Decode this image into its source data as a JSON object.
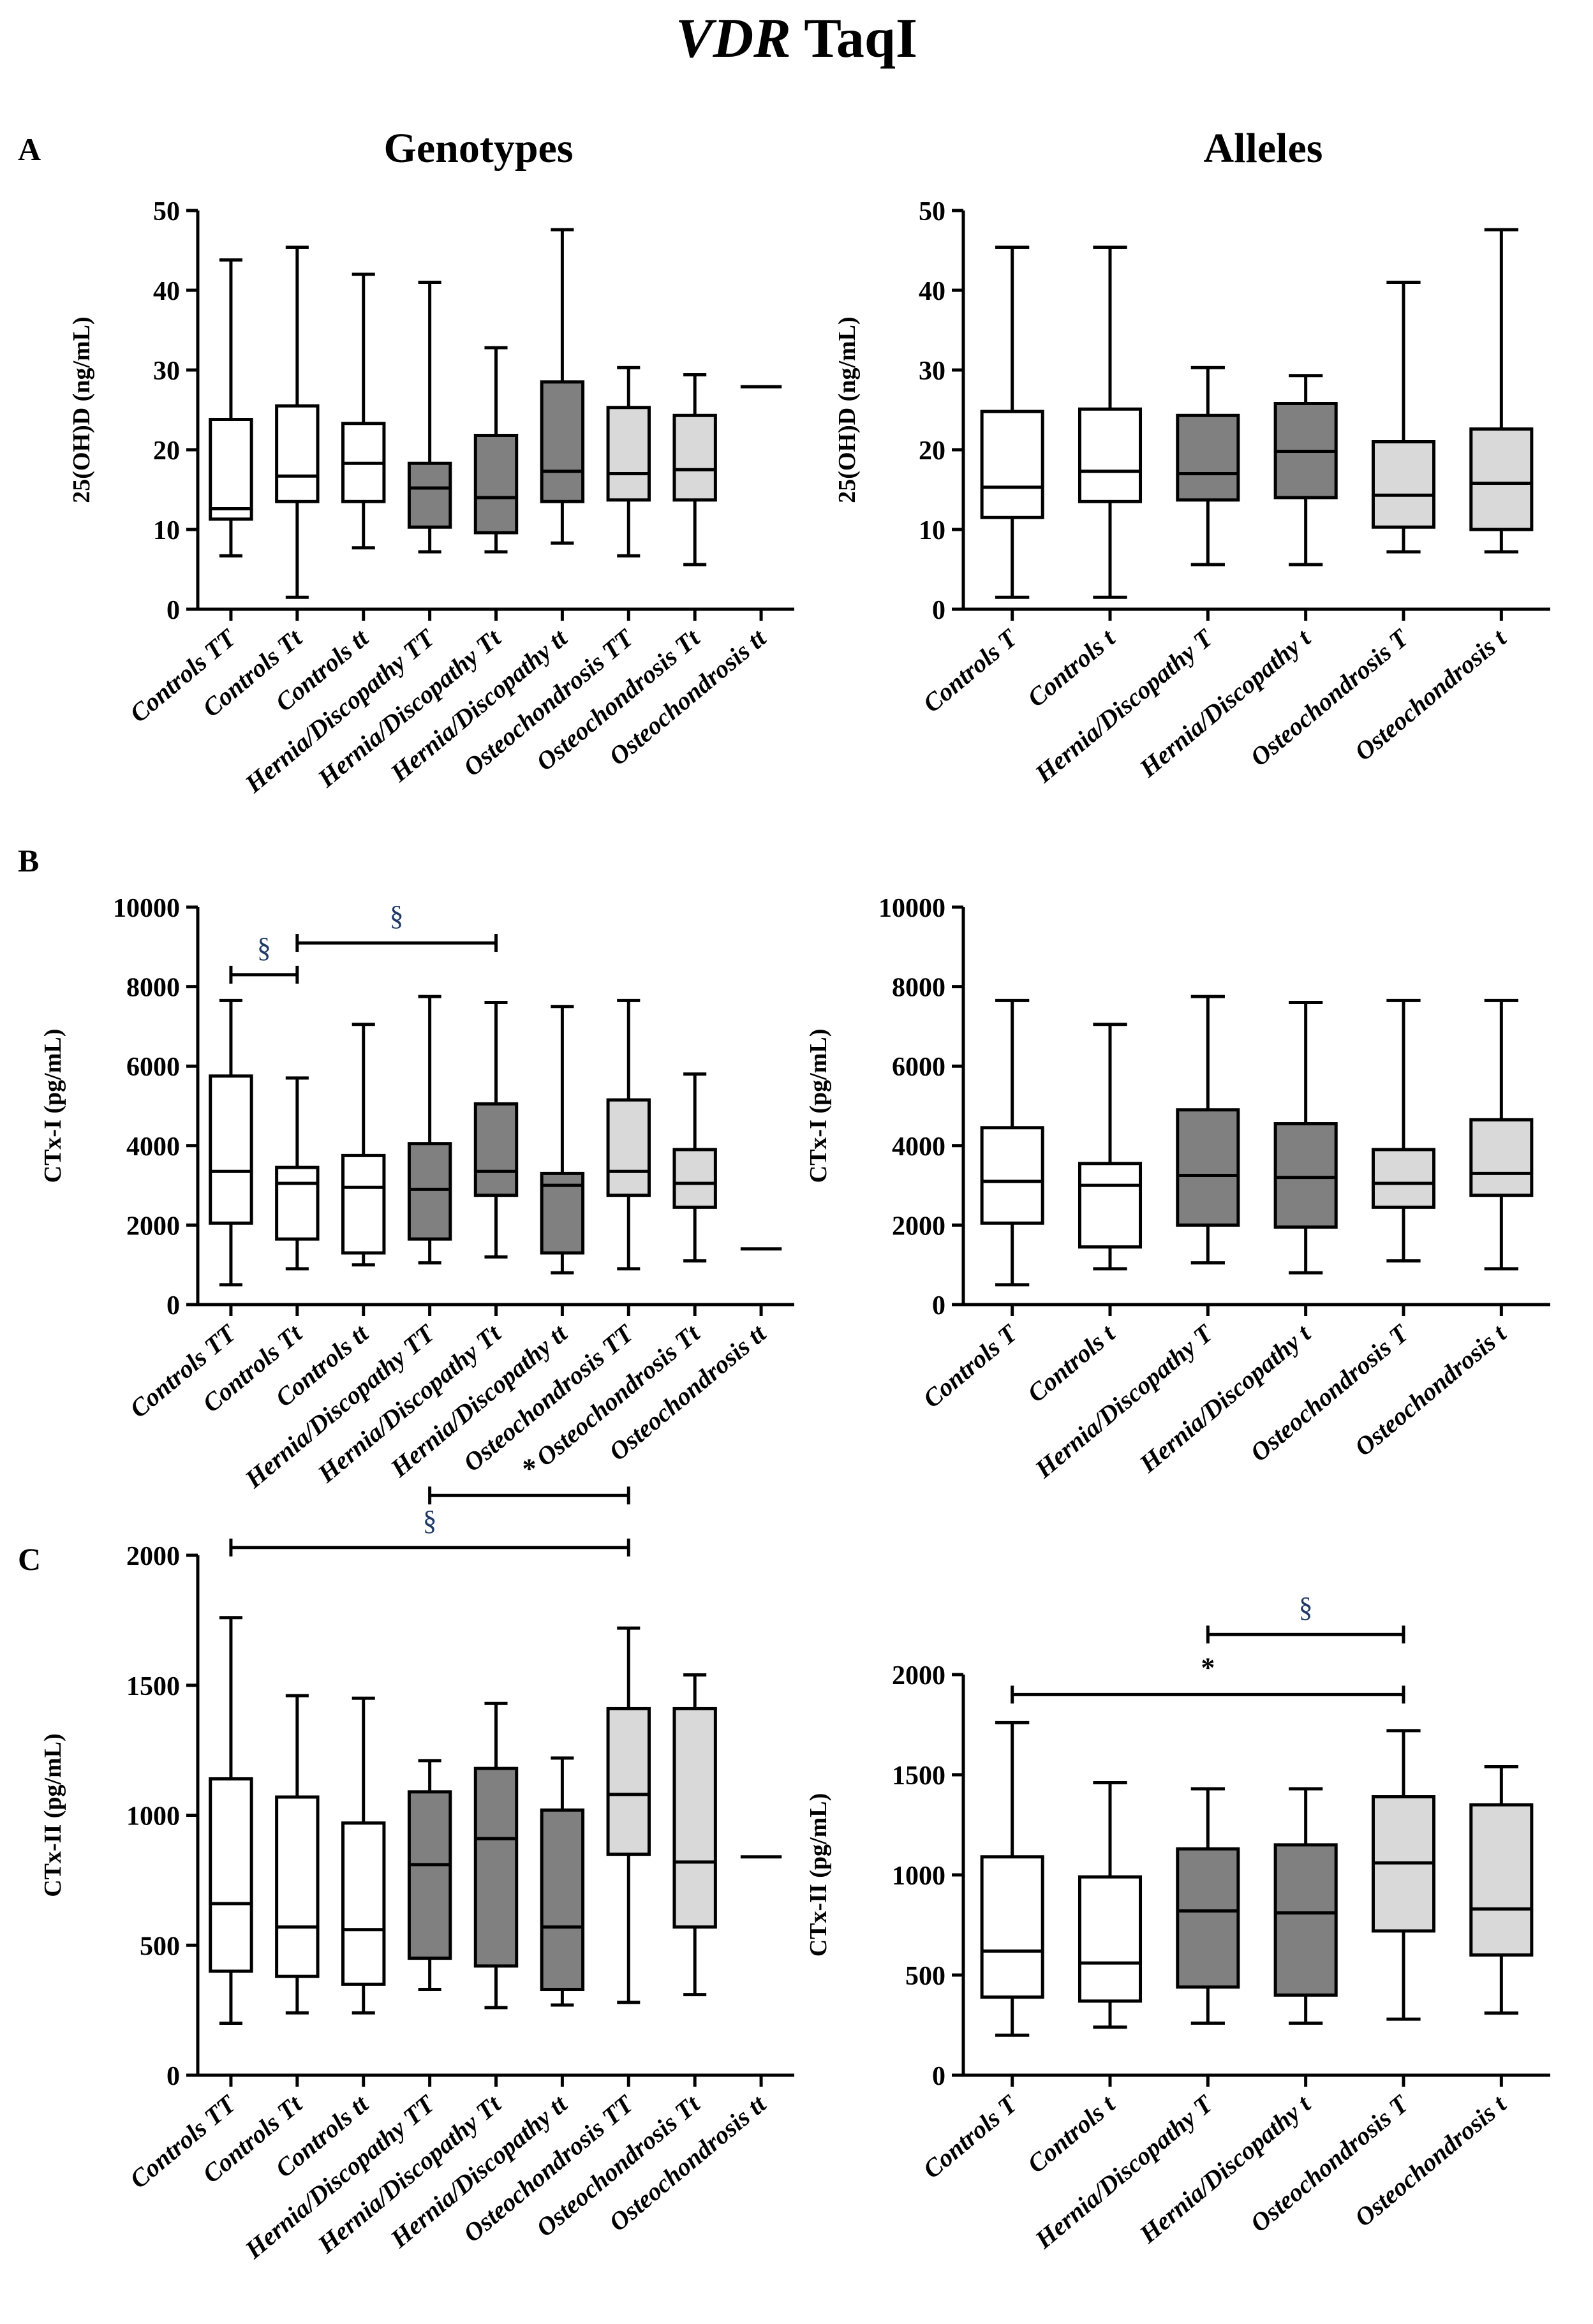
{
  "title": {
    "gene": "VDR",
    "polymorphism": "TaqI"
  },
  "panel_labels": [
    "A",
    "B",
    "C"
  ],
  "column_titles": {
    "genotypes": "Genotypes",
    "alleles": "Alleles"
  },
  "colors": {
    "controls": "#ffffff",
    "hernia": "#808080",
    "osteochondrosis": "#d9d9d9",
    "stroke": "#000000",
    "sig_text": "#1f3864"
  },
  "chart_data": [
    {
      "id": "A-genotypes",
      "type": "box",
      "ylabel": "25(OH)D (ng/mL)",
      "ylim": [
        0,
        50
      ],
      "yticks": [
        0,
        10,
        20,
        30,
        40,
        50
      ],
      "ytick_labels": [
        "0",
        "10",
        "20",
        "30",
        "40",
        "50"
      ],
      "categories": [
        "Controls TT",
        "Controls Tt",
        "Controls tt",
        "Hernia/Discopathy TT",
        "Hernia/Discopathy Tt",
        "Hernia/Discopathy tt",
        "Osteochondrosis TT",
        "Osteochondrosis Tt",
        "Osteochondrosis tt"
      ],
      "groups": [
        "controls",
        "controls",
        "controls",
        "hernia",
        "hernia",
        "hernia",
        "osteochondrosis",
        "osteochondrosis",
        "osteochondrosis"
      ],
      "boxes": [
        [
          6.7,
          11.3,
          12.6,
          23.8,
          43.8
        ],
        [
          1.5,
          13.5,
          16.7,
          25.5,
          45.4
        ],
        [
          7.7,
          13.5,
          18.3,
          23.3,
          42.0
        ],
        [
          7.2,
          10.3,
          15.2,
          18.3,
          41.0
        ],
        [
          7.2,
          9.6,
          14.0,
          21.8,
          32.8
        ],
        [
          8.3,
          13.5,
          17.3,
          28.5,
          47.6
        ],
        [
          6.7,
          13.7,
          17.0,
          25.3,
          30.3
        ],
        [
          5.6,
          13.7,
          17.5,
          24.3,
          29.4
        ],
        [
          27.9,
          27.9,
          27.9,
          27.9,
          27.9
        ]
      ],
      "significance": []
    },
    {
      "id": "A-alleles",
      "type": "box",
      "ylabel": "25(OH)D (ng/mL)",
      "ylim": [
        0,
        50
      ],
      "yticks": [
        0,
        10,
        20,
        30,
        40,
        50
      ],
      "ytick_labels": [
        "0",
        "10",
        "20",
        "30",
        "40",
        "50"
      ],
      "categories": [
        "Controls T",
        "Controls t",
        "Hernia/Discopathy T",
        "Hernia/Discopathy t",
        "Osteochondrosis T",
        "Osteochondrosis t"
      ],
      "groups": [
        "controls",
        "controls",
        "hernia",
        "hernia",
        "osteochondrosis",
        "osteochondrosis"
      ],
      "boxes": [
        [
          1.5,
          11.5,
          15.3,
          24.8,
          45.4
        ],
        [
          1.5,
          13.5,
          17.3,
          25.1,
          45.4
        ],
        [
          5.6,
          13.7,
          17.0,
          24.3,
          30.3
        ],
        [
          5.6,
          14.0,
          19.8,
          25.8,
          29.3
        ],
        [
          7.2,
          10.3,
          14.3,
          21.0,
          41.0
        ],
        [
          7.2,
          10.0,
          15.8,
          22.6,
          47.6
        ]
      ],
      "significance": []
    },
    {
      "id": "B-genotypes",
      "type": "box",
      "ylabel": "CTx-I (pg/mL)",
      "ylim": [
        0,
        10000
      ],
      "yticks": [
        0,
        2000,
        4000,
        6000,
        8000,
        10000
      ],
      "ytick_labels": [
        "0",
        "2000",
        "4000",
        "6000",
        "8000",
        "10000"
      ],
      "categories": [
        "Controls TT",
        "Controls Tt",
        "Controls tt",
        "Hernia/Discopathy TT",
        "Hernia/Discopathy Tt",
        "Hernia/Discopathy tt",
        "Osteochondrosis TT",
        "Osteochondrosis Tt",
        "Osteochondrosis tt"
      ],
      "groups": [
        "controls",
        "controls",
        "controls",
        "hernia",
        "hernia",
        "hernia",
        "osteochondrosis",
        "osteochondrosis",
        "osteochondrosis"
      ],
      "boxes": [
        [
          500,
          2050,
          3350,
          5750,
          7650
        ],
        [
          900,
          1650,
          3050,
          3450,
          5700
        ],
        [
          1000,
          1300,
          2950,
          3750,
          7050
        ],
        [
          1050,
          1650,
          2900,
          4050,
          7750
        ],
        [
          1200,
          2750,
          3350,
          5050,
          7600
        ],
        [
          800,
          1300,
          3000,
          3300,
          7500
        ],
        [
          900,
          2750,
          3350,
          5150,
          7650
        ],
        [
          1100,
          2450,
          3050,
          3900,
          5800
        ],
        [
          1400,
          1400,
          1400,
          1400,
          1400
        ]
      ],
      "significance": [
        {
          "from": 0,
          "to": 1,
          "y": 8300,
          "symbol": "§"
        },
        {
          "from": 1,
          "to": 4,
          "y": 9100,
          "symbol": "§"
        }
      ]
    },
    {
      "id": "B-alleles",
      "type": "box",
      "ylabel": "CTx-I (pg/mL)",
      "ylim": [
        0,
        10000
      ],
      "yticks": [
        0,
        2000,
        4000,
        6000,
        8000,
        10000
      ],
      "ytick_labels": [
        "0",
        "2000",
        "4000",
        "6000",
        "8000",
        "10000"
      ],
      "categories": [
        "Controls T",
        "Controls t",
        "Hernia/Discopathy T",
        "Hernia/Discopathy t",
        "Osteochondrosis T",
        "Osteochondrosis t"
      ],
      "groups": [
        "controls",
        "controls",
        "hernia",
        "hernia",
        "osteochondrosis",
        "osteochondrosis"
      ],
      "boxes": [
        [
          500,
          2050,
          3100,
          4450,
          7650
        ],
        [
          900,
          1450,
          3000,
          3550,
          7050
        ],
        [
          1050,
          2000,
          3250,
          4900,
          7750
        ],
        [
          800,
          1950,
          3200,
          4550,
          7600
        ],
        [
          1100,
          2450,
          3050,
          3900,
          7650
        ],
        [
          900,
          2750,
          3300,
          4650,
          7650
        ]
      ],
      "significance": []
    },
    {
      "id": "C-genotypes",
      "type": "box",
      "ylabel": "CTx-II (pg/mL)",
      "ylim": [
        0,
        2000
      ],
      "yticks": [
        0,
        500,
        1000,
        1500,
        2000
      ],
      "ytick_labels": [
        "0",
        "500",
        "1000",
        "1500",
        "2000"
      ],
      "categories": [
        "Controls TT",
        "Controls Tt",
        "Controls tt",
        "Hernia/Discopathy TT",
        "Hernia/Discopathy Tt",
        "Hernia/Discopathy tt",
        "Osteochondrosis TT",
        "Osteochondrosis Tt",
        "Osteochondrosis tt"
      ],
      "groups": [
        "controls",
        "controls",
        "controls",
        "hernia",
        "hernia",
        "hernia",
        "osteochondrosis",
        "osteochondrosis",
        "osteochondrosis"
      ],
      "boxes": [
        [
          200,
          400,
          660,
          1140,
          1760
        ],
        [
          240,
          380,
          570,
          1070,
          1460
        ],
        [
          240,
          350,
          560,
          970,
          1450
        ],
        [
          330,
          450,
          810,
          1090,
          1210
        ],
        [
          260,
          420,
          910,
          1180,
          1430
        ],
        [
          270,
          330,
          570,
          1020,
          1220
        ],
        [
          280,
          850,
          1080,
          1410,
          1720
        ],
        [
          310,
          570,
          820,
          1410,
          1540
        ],
        [
          840,
          840,
          840,
          840,
          840
        ]
      ],
      "significance": [
        {
          "from": 3,
          "to": 6,
          "y": 2230,
          "symbol": "*"
        },
        {
          "from": 0,
          "to": 6,
          "y": 2030,
          "symbol": "§"
        }
      ]
    },
    {
      "id": "C-alleles",
      "type": "box",
      "ylabel": "CTx-II (pg/mL)",
      "ylim": [
        0,
        2000
      ],
      "yticks": [
        0,
        500,
        1000,
        1500,
        2000
      ],
      "ytick_labels": [
        "0",
        "500",
        "1000",
        "1500",
        "2000"
      ],
      "categories": [
        "Controls T",
        "Controls t",
        "Hernia/Discopathy T",
        "Hernia/Discopathy t",
        "Osteochondrosis T",
        "Osteochondrosis t"
      ],
      "groups": [
        "controls",
        "controls",
        "hernia",
        "hernia",
        "osteochondrosis",
        "osteochondrosis"
      ],
      "boxes": [
        [
          200,
          390,
          620,
          1090,
          1760
        ],
        [
          240,
          370,
          560,
          990,
          1460
        ],
        [
          260,
          440,
          820,
          1130,
          1430
        ],
        [
          260,
          400,
          810,
          1150,
          1430
        ],
        [
          280,
          720,
          1060,
          1390,
          1720
        ],
        [
          310,
          600,
          830,
          1350,
          1540
        ]
      ],
      "significance": [
        {
          "from": 2,
          "to": 4,
          "y": 2200,
          "symbol": "§"
        },
        {
          "from": 0,
          "to": 4,
          "y": 1900,
          "symbol": "*"
        }
      ]
    }
  ]
}
